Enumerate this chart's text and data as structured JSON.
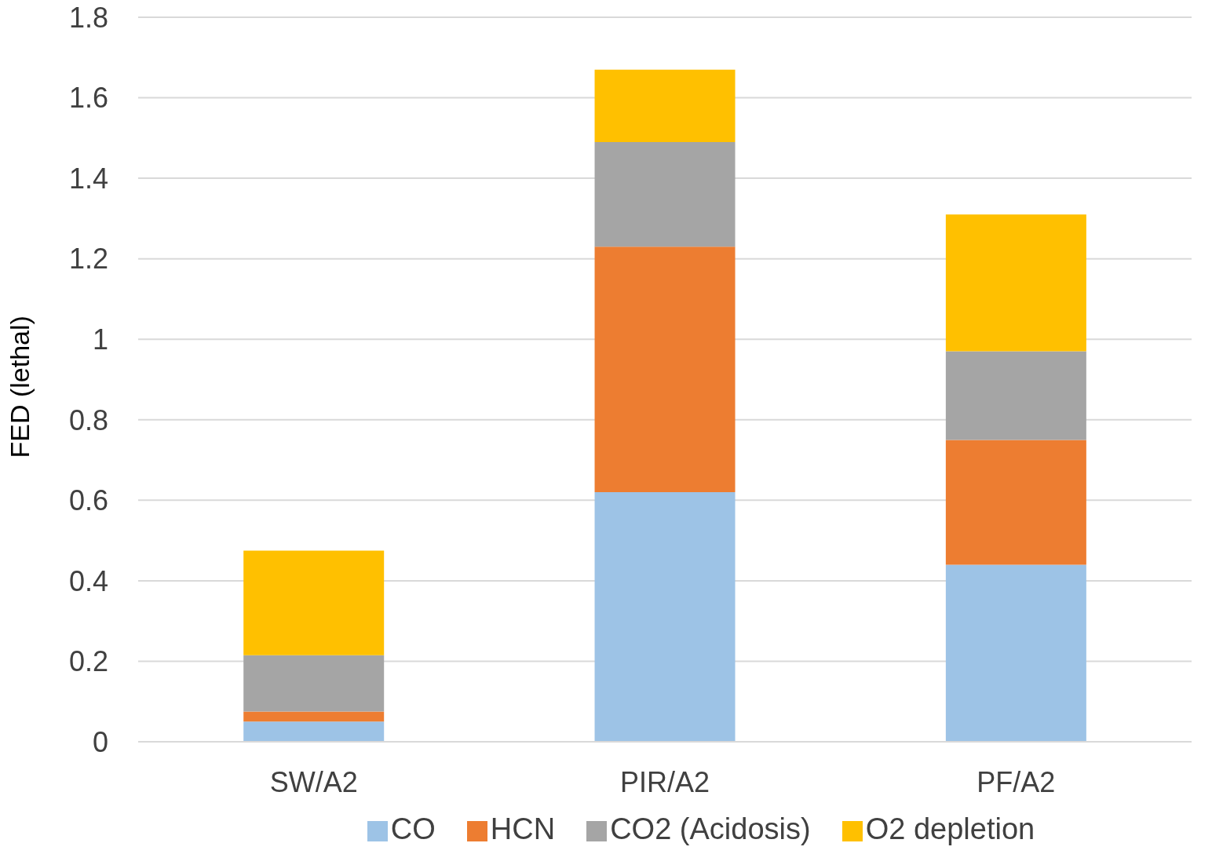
{
  "chart_data": {
    "type": "bar",
    "stacked": true,
    "ylabel": "FED (lethal)",
    "categories": [
      "SW/A2",
      "PIR/A2",
      "PF/A2"
    ],
    "series": [
      {
        "name": "CO",
        "color": "#9dc3e6",
        "values": [
          0.05,
          0.62,
          0.44
        ]
      },
      {
        "name": "HCN",
        "color": "#ed7d31",
        "values": [
          0.025,
          0.61,
          0.31
        ]
      },
      {
        "name": "CO2 (Acidosis)",
        "color": "#a5a5a5",
        "values": [
          0.14,
          0.26,
          0.22
        ]
      },
      {
        "name": "O2 depletion",
        "color": "#ffc000",
        "values": [
          0.26,
          0.18,
          0.34
        ]
      }
    ],
    "ylim": [
      0,
      1.8
    ],
    "yticks": [
      0,
      0.2,
      0.4,
      0.6,
      0.8,
      1,
      1.2,
      1.4,
      1.6,
      1.8
    ],
    "grid": "y",
    "legend": "bottom"
  }
}
